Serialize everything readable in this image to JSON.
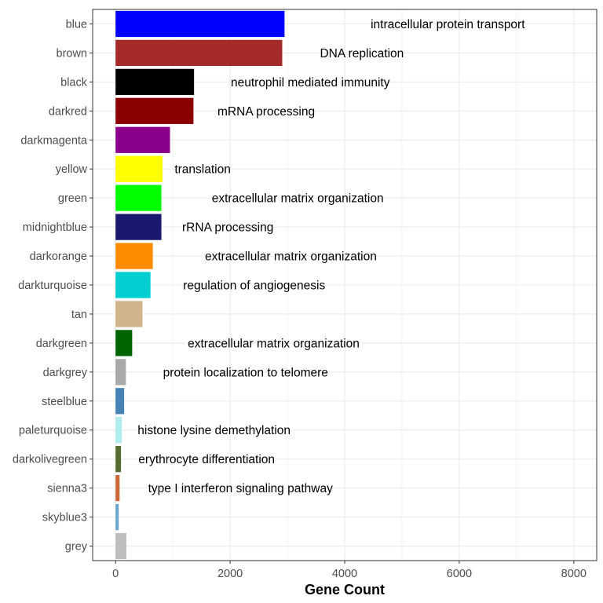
{
  "chart_data": {
    "type": "bar",
    "orientation": "horizontal",
    "xlabel": "Gene Count",
    "ylabel": "",
    "title": "",
    "xlim": [
      -400,
      8400
    ],
    "xticks": [
      0,
      2000,
      4000,
      6000,
      8000
    ],
    "xtick_labels": [
      "0",
      "2000",
      "4000",
      "6000",
      "8000"
    ],
    "grid": true,
    "legend": "none",
    "categories": [
      "blue",
      "brown",
      "black",
      "darkred",
      "darkmagenta",
      "yellow",
      "green",
      "midnightblue",
      "darkorange",
      "darkturquoise",
      "tan",
      "darkgreen",
      "darkgrey",
      "steelblue",
      "paleturquoise",
      "darkolivegreen",
      "sienna3",
      "skyblue3",
      "grey"
    ],
    "values": [
      2950,
      2910,
      1370,
      1360,
      950,
      820,
      800,
      800,
      650,
      610,
      470,
      290,
      180,
      150,
      110,
      95,
      70,
      55,
      190
    ],
    "colors": [
      "#0000FF",
      "#A52A2A",
      "#000000",
      "#8B0000",
      "#8B008B",
      "#FFFF00",
      "#00FF00",
      "#191970",
      "#FF8C00",
      "#00CED1",
      "#D2B48C",
      "#006400",
      "#A9A9A9",
      "#4682B4",
      "#AFEEEE",
      "#556B2F",
      "#CD6839",
      "#6CA6CD",
      "#BEBEBE"
    ],
    "annotations": [
      {
        "category": "blue",
        "text": "intracellular protein transport",
        "x": 5800
      },
      {
        "category": "brown",
        "text": "DNA replication",
        "x": 4300
      },
      {
        "category": "black",
        "text": "neutrophil mediated immunity",
        "x": 3400
      },
      {
        "category": "darkred",
        "text": "mRNA processing",
        "x": 2630
      },
      {
        "category": "yellow",
        "text": "translation",
        "x": 1520
      },
      {
        "category": "green",
        "text": "extracellular matrix organization",
        "x": 3180
      },
      {
        "category": "midnightblue",
        "text": "rRNA processing",
        "x": 1960
      },
      {
        "category": "darkorange",
        "text": "extracellular matrix organization",
        "x": 3060
      },
      {
        "category": "darkturquoise",
        "text": "regulation of angiogenesis",
        "x": 2420
      },
      {
        "category": "darkgreen",
        "text": "extracellular matrix organization",
        "x": 2760
      },
      {
        "category": "darkgrey",
        "text": "protein localization to telomere",
        "x": 2270
      },
      {
        "category": "paleturquoise",
        "text": "histone lysine demethylation",
        "x": 1720
      },
      {
        "category": "darkolivegreen",
        "text": "erythrocyte differentiation",
        "x": 1590
      },
      {
        "category": "sienna3",
        "text": "type I interferon signaling pathway",
        "x": 2180
      }
    ]
  }
}
